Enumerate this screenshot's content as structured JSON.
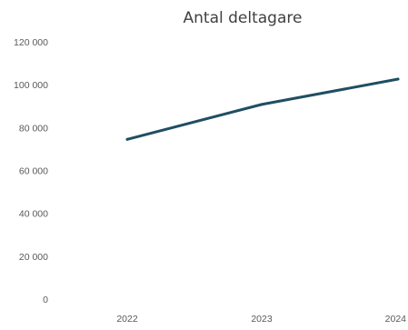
{
  "chart_data": {
    "type": "line",
    "title": "Antal deltagare",
    "xlabel": "",
    "ylabel": "",
    "categories": [
      "2022",
      "2023",
      "2024"
    ],
    "series": [
      {
        "values": [
          74500,
          90800,
          102600
        ],
        "color": "#1F4E63"
      }
    ],
    "ylim": [
      0,
      120000
    ],
    "yticks": [
      0,
      20000,
      40000,
      60000,
      80000,
      100000,
      120000
    ],
    "ytick_labels": [
      "0",
      "20 000",
      "40 000",
      "60 000",
      "80 000",
      "100 000",
      "120 000"
    ],
    "grid": false,
    "legend": "none"
  }
}
